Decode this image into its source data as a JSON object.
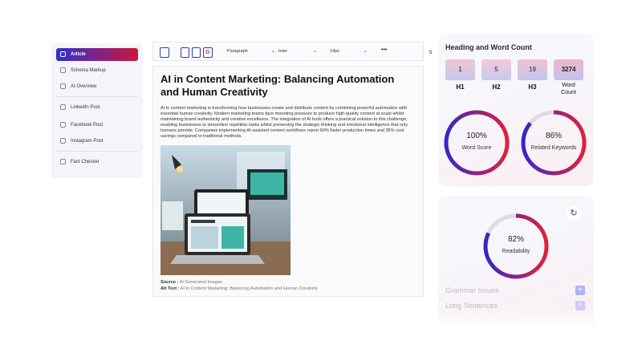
{
  "sidebar": {
    "items": [
      "Article",
      "Schema Markup",
      "AI Overview",
      "LinkedIn Post",
      "Facebook Post",
      "Instagram Post",
      "Fact Checker"
    ],
    "active": 0
  },
  "toolbar": {
    "block": "Paragraph",
    "font": "Inter",
    "size": "14px"
  },
  "document": {
    "title": "AI in Content Marketing: Balancing Automation and Human Creativity",
    "paragraph": "AI in content marketing is transforming how businesses create and distribute content by combining powerful automation with essential human creativity. Modern marketing teams face mounting pressure to produce high-quality content at scale whilst maintaining brand authenticity and creative excellence. The integration of AI tools offers a practical solution to this challenge, enabling businesses to streamline repetitive tasks whilst preserving the strategic thinking and emotional intelligence that only humans provide. Companies implementing AI-assisted content workflows report 60% faster production times and 35% cost savings compared to traditional methods.",
    "source_label": "Source :",
    "source": "AI Generated Images",
    "alt_label": "Alt Text :",
    "alt": "AI in Content Marketing: Balancing Automation and Human Creativity"
  },
  "word_count": {
    "title": "Heading and Word Count",
    "boxes": [
      {
        "count": "1",
        "label": "H1"
      },
      {
        "count": "5",
        "label": "H2"
      },
      {
        "count": "19",
        "label": "H3"
      },
      {
        "count": "3274",
        "label": "Word Count"
      }
    ],
    "gauges": [
      {
        "score": 100,
        "label": "100%",
        "name": "Word Score"
      },
      {
        "score": 86,
        "label": "86%",
        "name": "Related Keywords"
      }
    ]
  },
  "readability": {
    "gauge": {
      "score": 82,
      "label": "82%",
      "name": "Readability"
    },
    "items": [
      "Grammar Issues",
      "Long Sentences"
    ]
  }
}
